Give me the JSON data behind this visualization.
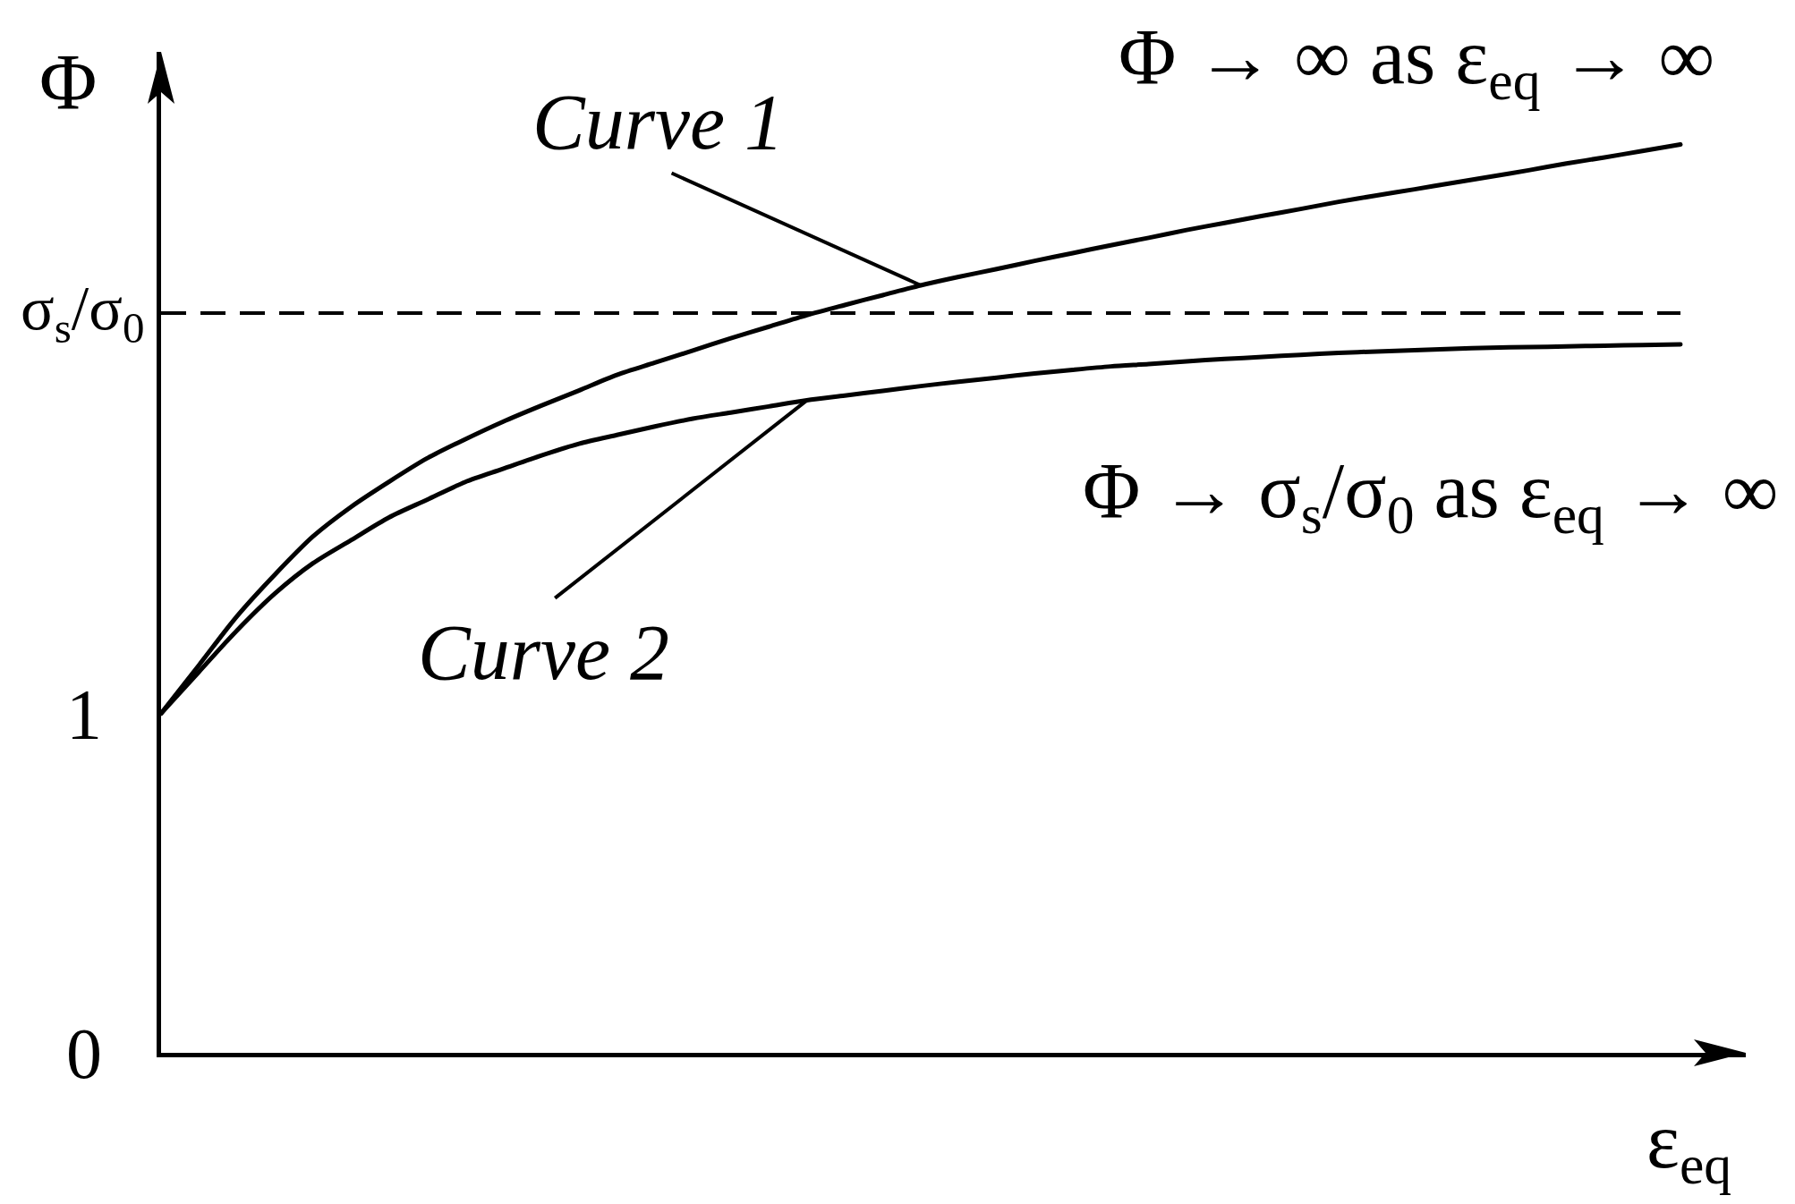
{
  "chart_data": {
    "type": "line",
    "xlabel": "ε$_{eq}$",
    "ylabel": "Φ",
    "categories": [
      null,
      null,
      null,
      null,
      null,
      null,
      null,
      null,
      null,
      null,
      null,
      null,
      null,
      null,
      null,
      null,
      null,
      null,
      null,
      null,
      null,
      null,
      null,
      null,
      null,
      null,
      null,
      null,
      null,
      null,
      null,
      null,
      null,
      null,
      null,
      null,
      null,
      null,
      null,
      null,
      null
    ],
    "series": [
      {
        "name": "Curve 1",
        "color": "#000000",
        "values": [
          1.0,
          1.143,
          1.287,
          1.41,
          1.522,
          1.609,
          1.683,
          1.752,
          1.808,
          1.86,
          1.907,
          1.952,
          1.998,
          2.034,
          2.07,
          2.106,
          2.14,
          2.174,
          2.204,
          2.233,
          2.262,
          2.287,
          2.31,
          2.334,
          2.357,
          2.38,
          2.402,
          2.425,
          2.446,
          2.467,
          2.487,
          2.508,
          2.527,
          2.545,
          2.564,
          2.582,
          2.601,
          2.621,
          2.639,
          2.658,
          2.677
        ]
      },
      {
        "name": "Curve 2",
        "color": "#000000",
        "values": [
          1.0,
          1.123,
          1.245,
          1.354,
          1.443,
          1.511,
          1.578,
          1.63,
          1.682,
          1.721,
          1.76,
          1.795,
          1.821,
          1.846,
          1.869,
          1.887,
          1.905,
          1.923,
          1.937,
          1.951,
          1.965,
          1.978,
          1.99,
          2.002,
          2.013,
          2.023,
          2.03,
          2.038,
          2.045,
          2.051,
          2.057,
          2.063,
          2.067,
          2.071,
          2.075,
          2.078,
          2.08,
          2.082,
          2.084,
          2.086,
          2.088
        ]
      }
    ],
    "ylim": [
      0,
      2.95
    ],
    "yticks": [
      0,
      1
    ],
    "ref_lines": [
      {
        "axis": "y",
        "value": 2.18,
        "label": "σ$_{s}$/σ$_{0}$",
        "color": "#000000",
        "line_style": "dashed"
      }
    ],
    "annotations": [
      "Φ → ∞ as ε$_{eq}$ → ∞",
      "Φ → σ$_{s}$/σ$_{0}$ as ε$_{eq}$ → ∞"
    ],
    "tick_labels": "y",
    "legend": false,
    "grid": false,
    "marker": "none",
    "line_style": "solid"
  }
}
